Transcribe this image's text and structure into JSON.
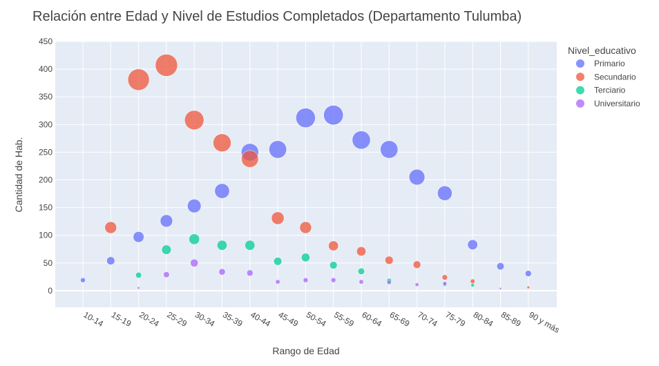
{
  "chart_data": {
    "type": "scatter",
    "title": "Relación entre Edad y Nivel de Estudios Completados (Departamento Tulumba)",
    "xlabel": "Rango de Edad",
    "ylabel": "Cantidad de Hab.",
    "ylim": [
      -30,
      450
    ],
    "yticks": [
      0,
      50,
      100,
      150,
      200,
      250,
      300,
      350,
      400,
      450
    ],
    "categories": [
      "10-14",
      "15-19",
      "20-24",
      "25-29",
      "30-34",
      "35-39",
      "40-44",
      "45-49",
      "50-54",
      "55-59",
      "60-64",
      "65-69",
      "70-74",
      "75-79",
      "80-84",
      "85-89",
      "90 y más"
    ],
    "grid": true,
    "legend_position": "right",
    "legend_title": "Nivel_educativo",
    "series": [
      {
        "name": "Primario",
        "color": "#636efa",
        "values": [
          19,
          54,
          97,
          126,
          153,
          180,
          250,
          255,
          312,
          317,
          272,
          255,
          205,
          176,
          83,
          44,
          31
        ]
      },
      {
        "name": "Secundario",
        "color": "#ef553b",
        "values": [
          null,
          114,
          381,
          407,
          308,
          267,
          238,
          131,
          114,
          81,
          71,
          55,
          47,
          24,
          17,
          null,
          6
        ]
      },
      {
        "name": "Terciario",
        "color": "#00cc96",
        "values": [
          null,
          null,
          28,
          74,
          93,
          82,
          82,
          53,
          60,
          46,
          35,
          18,
          null,
          11,
          10,
          null,
          null
        ]
      },
      {
        "name": "Universitario",
        "color": "#ab63fa",
        "values": [
          null,
          null,
          5,
          29,
          50,
          34,
          32,
          16,
          19,
          19,
          16,
          15,
          11,
          13,
          null,
          4,
          null
        ]
      }
    ]
  }
}
